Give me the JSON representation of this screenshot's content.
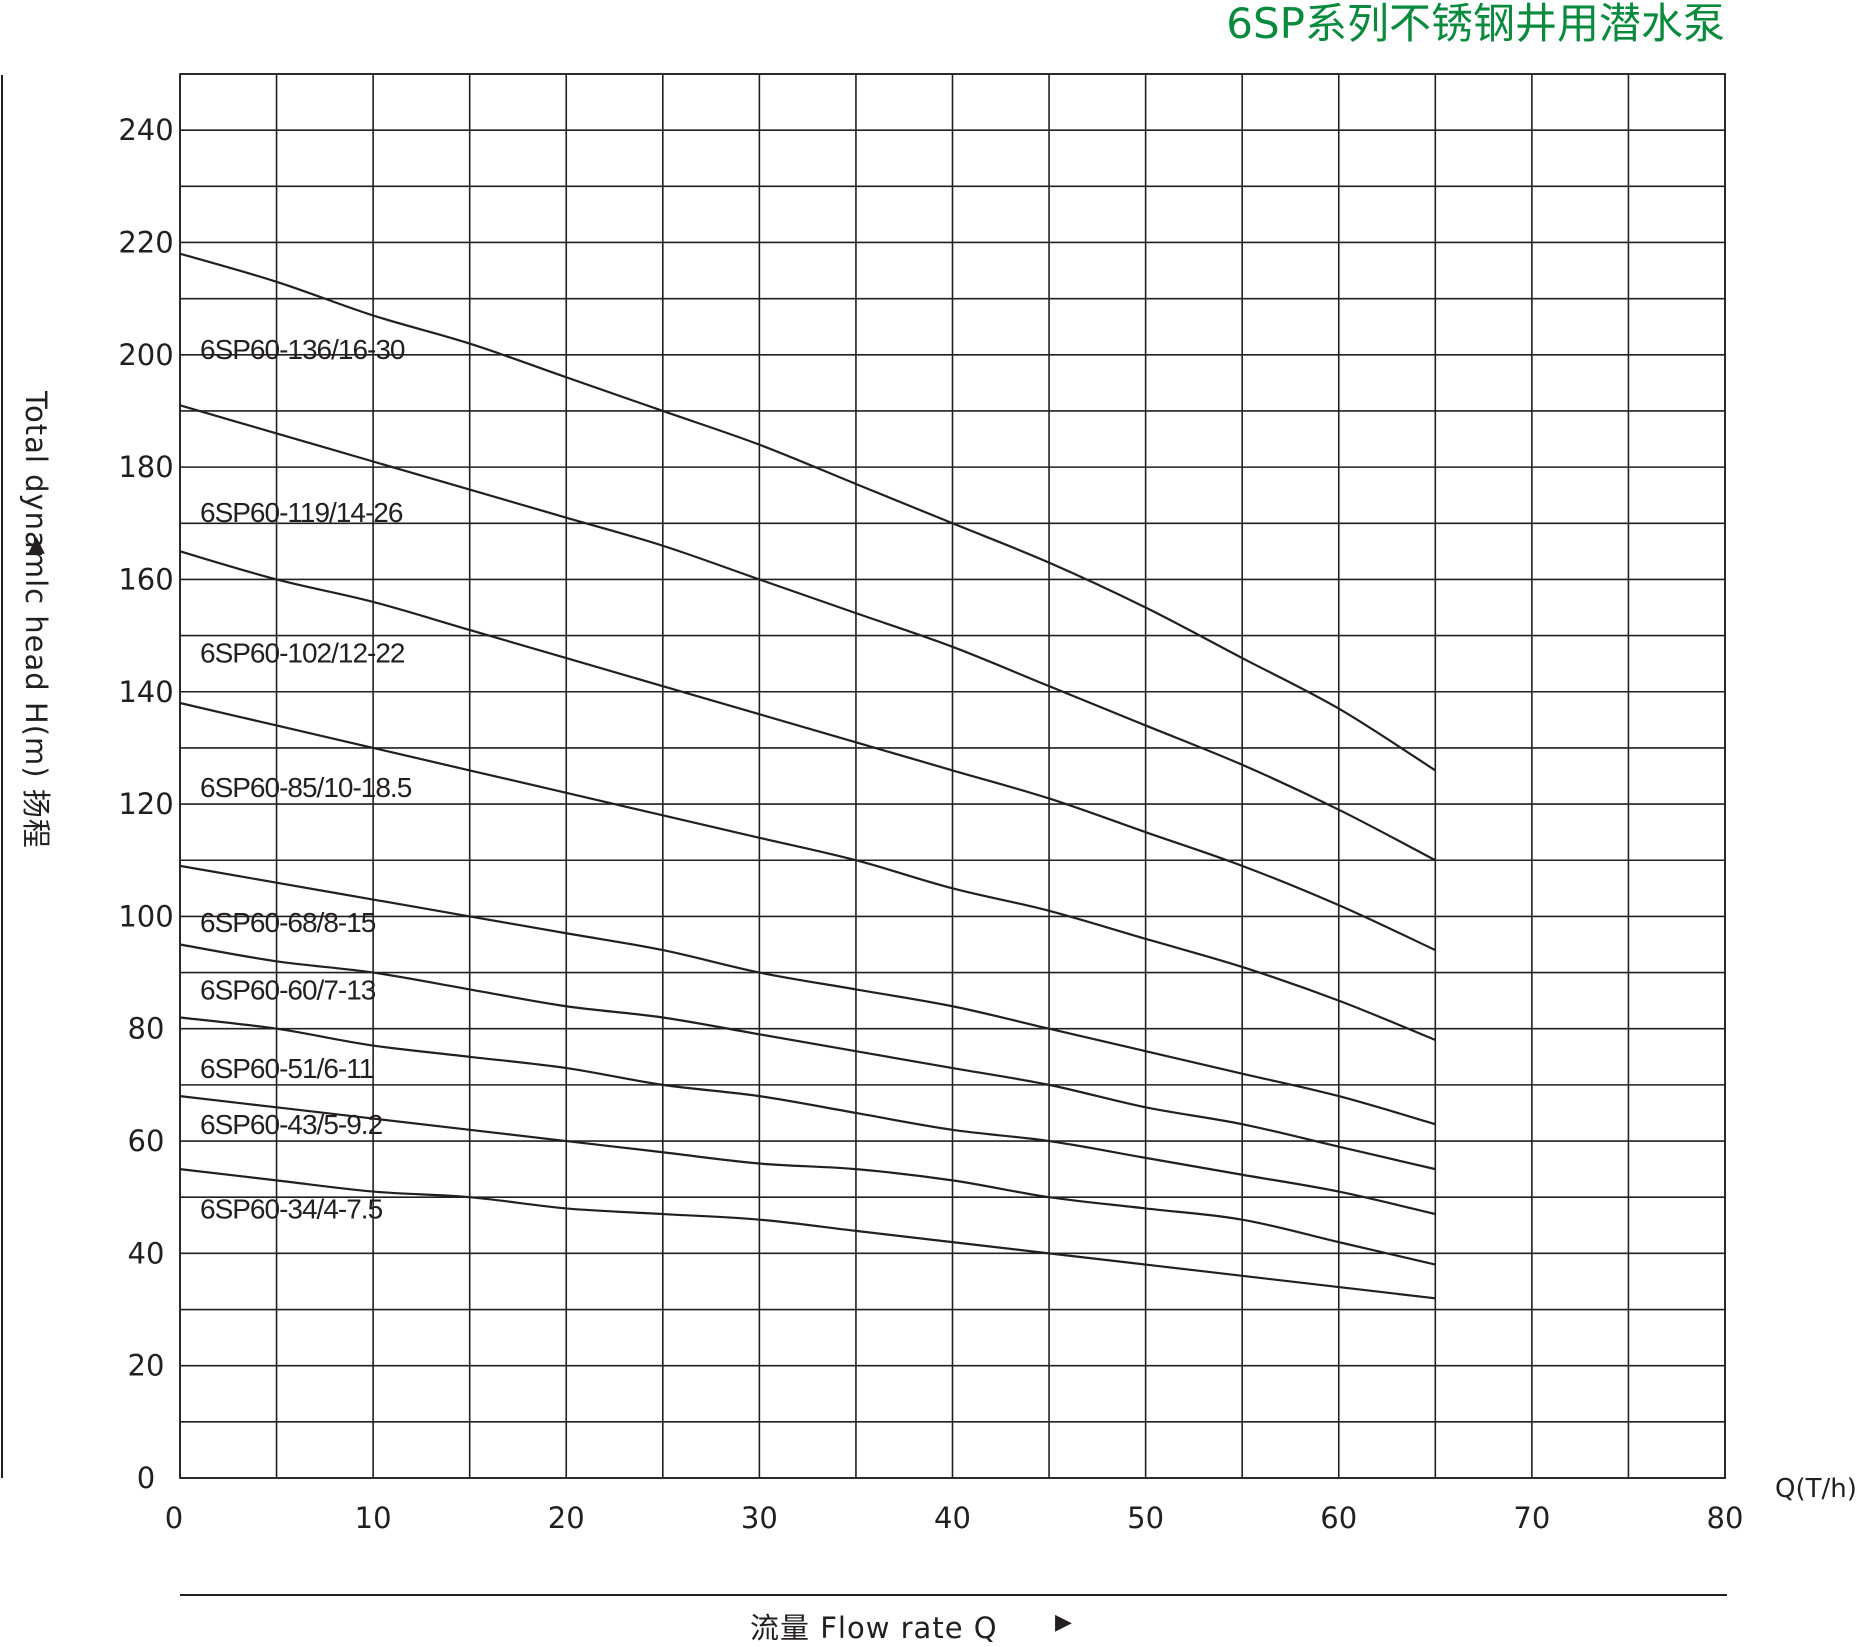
{
  "title": "6SP系列不锈钢井用潜水泵",
  "y_axis_label": "Total dynamlc head H(m) 扬程",
  "x_axis_label": "流量  Flow rate Q",
  "x_unit_label": "Q(T/h)",
  "chart_data": {
    "type": "line",
    "title": "6SP系列不锈钢井用潜水泵",
    "xlabel": "流量  Flow rate Q",
    "ylabel": "Total dynamlc head H(m) 扬程",
    "x_unit": "Q(T/h)",
    "xlim": [
      0,
      80
    ],
    "ylim": [
      0,
      250
    ],
    "xticks": [
      0,
      10,
      20,
      30,
      40,
      50,
      60,
      70,
      80
    ],
    "yticks": [
      0,
      20,
      40,
      60,
      80,
      100,
      120,
      140,
      160,
      180,
      200,
      220,
      240
    ],
    "grid": true,
    "x": [
      0,
      5,
      10,
      15,
      20,
      25,
      30,
      35,
      40,
      45,
      50,
      55,
      60,
      65
    ],
    "series": [
      {
        "name": "6SP60-136/16-30",
        "values": [
          218,
          213,
          207,
          202,
          196,
          190,
          184,
          177,
          170,
          163,
          155,
          146,
          137,
          126
        ]
      },
      {
        "name": "6SP60-119/14-26",
        "values": [
          191,
          186,
          181,
          176,
          171,
          166,
          160,
          154,
          148,
          141,
          134,
          127,
          119,
          110
        ]
      },
      {
        "name": "6SP60-102/12-22",
        "values": [
          165,
          160,
          156,
          151,
          146,
          141,
          136,
          131,
          126,
          121,
          115,
          109,
          102,
          94
        ]
      },
      {
        "name": "6SP60-85/10-18.5",
        "values": [
          138,
          134,
          130,
          126,
          122,
          118,
          114,
          110,
          105,
          101,
          96,
          91,
          85,
          78
        ]
      },
      {
        "name": "6SP60-68/8-15",
        "values": [
          109,
          106,
          103,
          100,
          97,
          94,
          90,
          87,
          84,
          80,
          76,
          72,
          68,
          63
        ]
      },
      {
        "name": "6SP60-60/7-13",
        "values": [
          95,
          92,
          90,
          87,
          84,
          82,
          79,
          76,
          73,
          70,
          66,
          63,
          59,
          55
        ]
      },
      {
        "name": "6SP60-51/6-11",
        "values": [
          82,
          80,
          77,
          75,
          73,
          70,
          68,
          65,
          62,
          60,
          57,
          54,
          51,
          47
        ]
      },
      {
        "name": "6SP60-43/5-9.2",
        "values": [
          68,
          66,
          64,
          62,
          60,
          58,
          56,
          55,
          53,
          50,
          48,
          46,
          42,
          38
        ]
      },
      {
        "name": "6SP60-34/4-7.5",
        "values": [
          55,
          53,
          51,
          50,
          48,
          47,
          46,
          44,
          42,
          40,
          38,
          36,
          34,
          32
        ]
      }
    ]
  }
}
